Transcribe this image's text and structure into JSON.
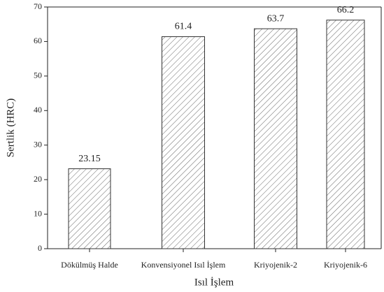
{
  "chart_data": {
    "type": "bar",
    "categories": [
      "Dökülmüş Halde",
      "Konvensiyonel Isıl İşlem",
      "Kriyojenik-2",
      "Kriyojenik-6"
    ],
    "values": [
      23.15,
      61.4,
      63.7,
      66.2
    ],
    "color": "#333333",
    "x_label": "Isıl İşlem",
    "y_label": "Sertlik (HRC)",
    "ylim": [
      0,
      70
    ],
    "yticks": [
      0,
      10,
      20,
      30,
      40,
      50,
      60,
      70
    ]
  }
}
